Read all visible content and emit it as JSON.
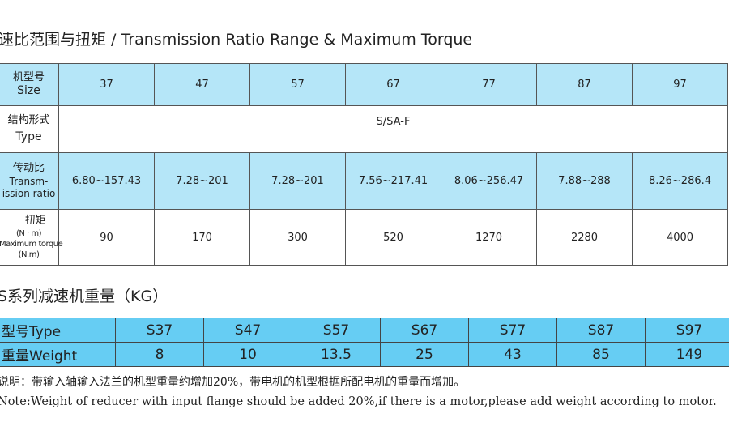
{
  "ratio_table": {
    "title": "速比范围与扭矩 / Transmission Ratio Range & Maximum Torque",
    "size_label_cn": "机型号",
    "size_label_en": "Size",
    "sizes": [
      "37",
      "47",
      "57",
      "67",
      "77",
      "87",
      "97"
    ],
    "type_label_cn": "结构形式",
    "type_label_en": "Type",
    "type_value": "S/SA-F",
    "ratio_label_cn": "传动比",
    "ratio_label_en1": "Transm-",
    "ratio_label_en2": "ission ratio",
    "ratios": [
      "6.80~157.43",
      "7.28~201",
      "7.28~201",
      "7.56~217.41",
      "8.06~256.47",
      "7.88~288",
      "8.26~286.4"
    ],
    "torque_label_cn": "扭矩",
    "torque_label_unit": "(N · m)",
    "torque_label_en": "Maximum torque",
    "torque_label_unit_en": "(N.m)",
    "torques": [
      "90",
      "170",
      "300",
      "520",
      "1270",
      "2280",
      "4000"
    ]
  },
  "weight_table": {
    "title": "S系列减速机重量（KG）",
    "type_label": "型号Type",
    "types": [
      "S37",
      "S47",
      "S57",
      "S67",
      "S77",
      "S87",
      "S97"
    ],
    "weight_label": "重量Weight",
    "weights": [
      "8",
      "10",
      "13.5",
      "25",
      "43",
      "85",
      "149"
    ]
  },
  "notes": {
    "cn": "说明：带输入轴输入法兰的机型重量约增加20%，带电机的机型根据所配电机的重量而增加。",
    "en": "Note:Weight of reducer with input flange should be added 20%,if there is a motor,please add weight according to motor."
  },
  "colors": {
    "header_blue": "#b5e6f8",
    "weight_blue": "#66cdf3"
  }
}
